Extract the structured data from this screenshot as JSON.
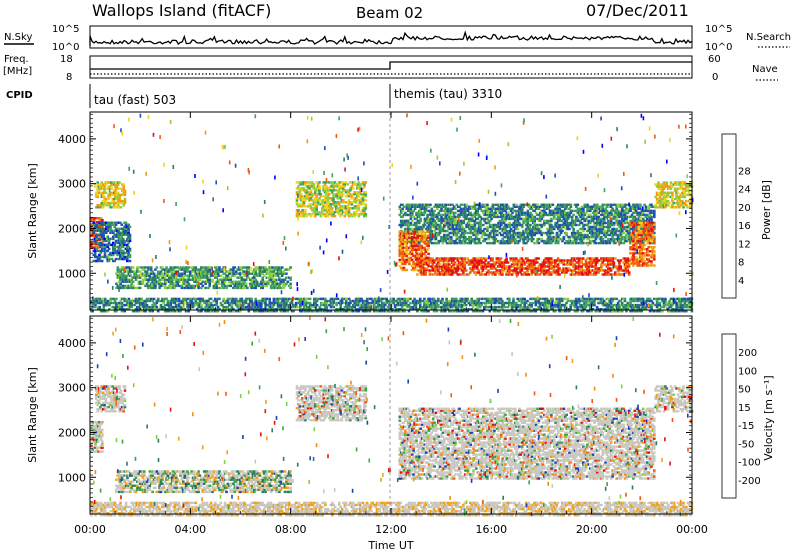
{
  "header": {
    "station": "Wallops Island (fitACF)",
    "beam": "Beam 02",
    "date": "07/Dec/2011"
  },
  "top_panels": {
    "nsky_label": "N.Sky",
    "nsearch_label": "N.Search",
    "freq_label": "Freq.",
    "freq_unit": "[MHz]",
    "nave_label": "Nave",
    "cpid_label": "CPID",
    "nsky_ticks": [
      "10^5",
      "10^0"
    ],
    "nsearch_ticks": [
      "10^5",
      "10^0"
    ],
    "freq_ticks": [
      "18",
      "8"
    ],
    "nave_ticks": [
      "60",
      "0"
    ],
    "cpid_segments": [
      {
        "label": "tau (fast) 503",
        "start": 0,
        "end": 12
      },
      {
        "label": "themis (tau) 3310",
        "start": 12,
        "end": 24
      }
    ]
  },
  "chart_data": [
    {
      "type": "heatmap",
      "name": "power",
      "ylabel": "Slant Range [km]",
      "ylim": [
        180,
        4600
      ],
      "yticks": [
        1000,
        2000,
        3000,
        4000
      ],
      "xlim": [
        0,
        24
      ],
      "colorbar": {
        "label": "Power [dB]",
        "ticks": [
          4,
          8,
          12,
          16,
          20,
          24,
          28
        ],
        "colors": [
          "#0000ff",
          "#1f4fb4",
          "#2c7b6a",
          "#3fa35a",
          "#8fcf3f",
          "#f2d21b",
          "#f29a16",
          "#ef5a12",
          "#e51010"
        ]
      },
      "regions": [
        {
          "t0": 0.0,
          "t1": 0.5,
          "r0": 1600,
          "r1": 2300,
          "level": 0.9
        },
        {
          "t0": 0.2,
          "t1": 1.4,
          "r0": 2500,
          "r1": 3100,
          "level": 0.6
        },
        {
          "t0": 0.1,
          "t1": 1.6,
          "r0": 1300,
          "r1": 2200,
          "level": 0.25
        },
        {
          "t0": 1.0,
          "t1": 8.0,
          "r0": 700,
          "r1": 1200,
          "level": 0.35
        },
        {
          "t0": 8.2,
          "t1": 11.0,
          "r0": 2300,
          "r1": 3100,
          "level": 0.55
        },
        {
          "t0": 12.3,
          "t1": 22.5,
          "r0": 1700,
          "r1": 2600,
          "level": 0.3
        },
        {
          "t0": 12.3,
          "t1": 13.5,
          "r0": 1100,
          "r1": 2000,
          "level": 0.8
        },
        {
          "t0": 13.0,
          "t1": 21.5,
          "r0": 1000,
          "r1": 1400,
          "level": 0.88
        },
        {
          "t0": 21.5,
          "t1": 22.5,
          "r0": 1200,
          "r1": 2200,
          "level": 0.8
        },
        {
          "t0": 22.5,
          "t1": 24.0,
          "r0": 2500,
          "r1": 3100,
          "level": 0.6
        },
        {
          "t0": 0.0,
          "t1": 24.0,
          "r0": 180,
          "r1": 500,
          "level": 0.3
        }
      ]
    },
    {
      "type": "heatmap",
      "name": "velocity",
      "ylabel": "Slant Range [km]",
      "ylim": [
        180,
        4600
      ],
      "yticks": [
        1000,
        2000,
        3000,
        4000
      ],
      "xlabel": "Time UT",
      "xlim": [
        0,
        24
      ],
      "xticks": [
        "00:00",
        "04:00",
        "08:00",
        "12:00",
        "16:00",
        "20:00",
        "00:00"
      ],
      "colorbar": {
        "label": "Velocity [m s⁻¹]",
        "ticks": [
          200,
          100,
          50,
          15,
          -15,
          -50,
          -100,
          -200
        ],
        "colors": [
          "#1f3fb4",
          "#2c7b6a",
          "#3fa33f",
          "#7fd33f",
          "#c8c8c0",
          "#f2a11b",
          "#f28c16",
          "#ef5a12",
          "#e51010"
        ]
      },
      "regions": [
        {
          "t0": 0.0,
          "t1": 0.5,
          "r0": 1600,
          "r1": 2300,
          "level": 0.5
        },
        {
          "t0": 0.2,
          "t1": 1.4,
          "r0": 2500,
          "r1": 3100,
          "level": 0.5
        },
        {
          "t0": 1.0,
          "t1": 8.0,
          "r0": 700,
          "r1": 1200,
          "level": 0.35
        },
        {
          "t0": 8.2,
          "t1": 11.0,
          "r0": 2300,
          "r1": 3100,
          "level": 0.5
        },
        {
          "t0": 12.3,
          "t1": 22.5,
          "r0": 1000,
          "r1": 2600,
          "level": 0.5
        },
        {
          "t0": 22.5,
          "t1": 24.0,
          "r0": 2500,
          "r1": 3100,
          "level": 0.5
        },
        {
          "t0": 0.0,
          "t1": 24.0,
          "r0": 180,
          "r1": 500,
          "level": 0.4
        }
      ]
    }
  ]
}
